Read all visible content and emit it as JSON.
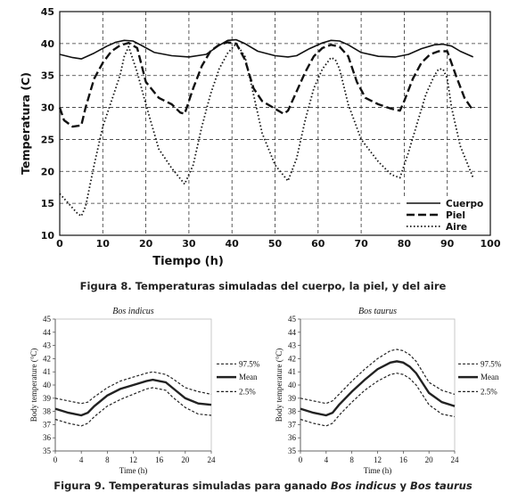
{
  "fig8": {
    "caption": "Figura 8. Temperaturas simuladas del cuerpo, la piel, y del aire"
  },
  "fig9": {
    "caption_pre": "Figura 9. Temperaturas simuladas para ganado ",
    "caption_sp1": "Bos indicus",
    "caption_mid": " y ",
    "caption_sp2": "Bos taurus"
  },
  "chart_data": [
    {
      "type": "line",
      "xlabel": "Tiempo (h)",
      "ylabel": "Temperatura (C)",
      "xlim": [
        0,
        100
      ],
      "ylim": [
        10,
        45
      ],
      "xticks": [
        0,
        10,
        20,
        30,
        40,
        50,
        60,
        70,
        80,
        90,
        100
      ],
      "yticks": [
        10,
        15,
        20,
        25,
        30,
        35,
        40,
        45
      ],
      "grid": "dashed",
      "legend": "bottom-right",
      "series": [
        {
          "name": "Cuerpo",
          "dash": "solid",
          "x": [
            0,
            3,
            5,
            8,
            11,
            13,
            15,
            17,
            19,
            22,
            26,
            30,
            34,
            37,
            39,
            41,
            43,
            46,
            50,
            53,
            55,
            58,
            61,
            63,
            65,
            67,
            70,
            74,
            78,
            81,
            84,
            87,
            89,
            91,
            93,
            96
          ],
          "y": [
            38.3,
            37.8,
            37.6,
            38.5,
            39.6,
            40.2,
            40.5,
            40.4,
            39.7,
            38.6,
            38.1,
            37.9,
            38.3,
            39.7,
            40.5,
            40.6,
            40.0,
            38.8,
            38.1,
            37.9,
            38.1,
            39.2,
            40.1,
            40.5,
            40.4,
            39.8,
            38.6,
            38.0,
            37.9,
            38.3,
            39.2,
            39.8,
            39.9,
            39.6,
            38.8,
            37.9
          ]
        },
        {
          "name": "Piel",
          "dash": "dashed",
          "x": [
            0,
            1,
            3,
            5,
            6,
            8,
            10,
            12,
            14,
            16,
            18,
            20,
            23,
            26,
            28,
            29,
            31,
            33,
            35,
            37,
            39,
            41,
            43,
            45,
            47,
            50,
            52,
            53,
            55,
            57,
            59,
            61,
            63,
            65,
            67,
            69,
            71,
            74,
            77,
            79,
            80,
            82,
            84,
            86,
            88,
            90,
            92,
            94,
            96
          ],
          "y": [
            30.0,
            28.0,
            27.0,
            27.2,
            30.0,
            34.5,
            37.0,
            38.8,
            39.7,
            40.1,
            39.3,
            34.0,
            31.5,
            30.5,
            29.2,
            29.0,
            33.0,
            36.5,
            38.8,
            39.8,
            40.2,
            40.0,
            37.5,
            33.0,
            31.0,
            29.8,
            29.0,
            29.5,
            32.5,
            35.5,
            38.0,
            39.3,
            39.8,
            39.5,
            38.0,
            34.0,
            31.5,
            30.5,
            29.8,
            29.5,
            31.0,
            34.5,
            37.0,
            38.3,
            38.8,
            38.8,
            35.0,
            31.5,
            29.5
          ]
        },
        {
          "name": "Aire",
          "dash": "dotted",
          "x": [
            0,
            2,
            4,
            5,
            6,
            8,
            10,
            12,
            14,
            15,
            16,
            18,
            20,
            23,
            26,
            29,
            31,
            33,
            35,
            37,
            39,
            41,
            43,
            45,
            47,
            50,
            53,
            55,
            57,
            59,
            61,
            63,
            64,
            65,
            67,
            70,
            74,
            77,
            79,
            81,
            83,
            85,
            87,
            88,
            89,
            90,
            91,
            93,
            96
          ],
          "y": [
            16.5,
            15.0,
            13.5,
            13.0,
            14.5,
            21.0,
            27.0,
            31.0,
            35.0,
            38.0,
            39.5,
            35.5,
            30.5,
            23.5,
            20.5,
            18.0,
            21.0,
            27.0,
            32.0,
            36.0,
            38.5,
            40.0,
            38.0,
            32.0,
            26.0,
            21.0,
            18.5,
            22.0,
            28.0,
            33.0,
            36.0,
            37.8,
            37.5,
            36.0,
            30.5,
            25.0,
            21.5,
            19.5,
            19.0,
            23.0,
            27.5,
            32.0,
            35.0,
            36.0,
            36.0,
            34.5,
            30.0,
            24.0,
            19.0
          ]
        }
      ]
    },
    {
      "type": "line",
      "title": "Bos indicus",
      "xlabel": "Time (h)",
      "ylabel": "Body temperature (°C)",
      "xlim": [
        0,
        24
      ],
      "ylim": [
        35,
        45
      ],
      "xticks": [
        0,
        4,
        8,
        12,
        16,
        20,
        24
      ],
      "yticks": [
        35,
        36,
        37,
        38,
        39,
        40,
        41,
        42,
        43,
        44,
        45
      ],
      "legend": "right",
      "series": [
        {
          "name": "97.5%",
          "x": [
            0,
            2,
            4,
            5,
            6,
            8,
            10,
            12,
            14,
            15,
            16,
            17,
            18,
            20,
            22,
            24
          ],
          "y": [
            39.0,
            38.8,
            38.6,
            38.7,
            39.1,
            39.8,
            40.3,
            40.6,
            40.9,
            41.0,
            40.9,
            40.8,
            40.5,
            39.8,
            39.5,
            39.3
          ]
        },
        {
          "name": "Mean",
          "x": [
            0,
            2,
            4,
            5,
            6,
            8,
            10,
            12,
            14,
            15,
            16,
            17,
            18,
            20,
            22,
            24
          ],
          "y": [
            38.2,
            37.9,
            37.7,
            37.9,
            38.4,
            39.2,
            39.7,
            40.0,
            40.3,
            40.4,
            40.3,
            40.2,
            39.8,
            39.0,
            38.6,
            38.5
          ]
        },
        {
          "name": "2.5%",
          "x": [
            0,
            2,
            4,
            5,
            6,
            8,
            10,
            12,
            14,
            15,
            16,
            17,
            18,
            20,
            22,
            24
          ],
          "y": [
            37.4,
            37.1,
            36.9,
            37.1,
            37.6,
            38.4,
            38.9,
            39.3,
            39.7,
            39.8,
            39.7,
            39.6,
            39.1,
            38.3,
            37.8,
            37.7
          ]
        }
      ]
    },
    {
      "type": "line",
      "title": "Bos taurus",
      "xlabel": "Time (h)",
      "ylabel": "Body temperature (°C)",
      "xlim": [
        0,
        24
      ],
      "ylim": [
        35,
        45
      ],
      "xticks": [
        0,
        4,
        8,
        12,
        16,
        20,
        24
      ],
      "yticks": [
        35,
        36,
        37,
        38,
        39,
        40,
        41,
        42,
        43,
        44,
        45
      ],
      "legend": "right",
      "series": [
        {
          "name": "97.5%",
          "x": [
            0,
            2,
            4,
            5,
            6,
            8,
            10,
            12,
            14,
            15,
            16,
            17,
            18,
            20,
            22,
            24
          ],
          "y": [
            39.0,
            38.8,
            38.6,
            38.8,
            39.3,
            40.3,
            41.2,
            42.0,
            42.6,
            42.7,
            42.6,
            42.3,
            41.8,
            40.2,
            39.6,
            39.3
          ]
        },
        {
          "name": "Mean",
          "x": [
            0,
            2,
            4,
            5,
            6,
            8,
            10,
            12,
            14,
            15,
            16,
            17,
            18,
            20,
            22,
            24
          ],
          "y": [
            38.2,
            37.9,
            37.7,
            37.9,
            38.5,
            39.5,
            40.4,
            41.2,
            41.7,
            41.8,
            41.7,
            41.4,
            40.9,
            39.4,
            38.7,
            38.4
          ]
        },
        {
          "name": "2.5%",
          "x": [
            0,
            2,
            4,
            5,
            6,
            8,
            10,
            12,
            14,
            15,
            16,
            17,
            18,
            20,
            22,
            24
          ],
          "y": [
            37.4,
            37.1,
            36.9,
            37.1,
            37.7,
            38.7,
            39.6,
            40.3,
            40.8,
            40.9,
            40.8,
            40.5,
            40.0,
            38.5,
            37.8,
            37.6
          ]
        }
      ]
    }
  ]
}
